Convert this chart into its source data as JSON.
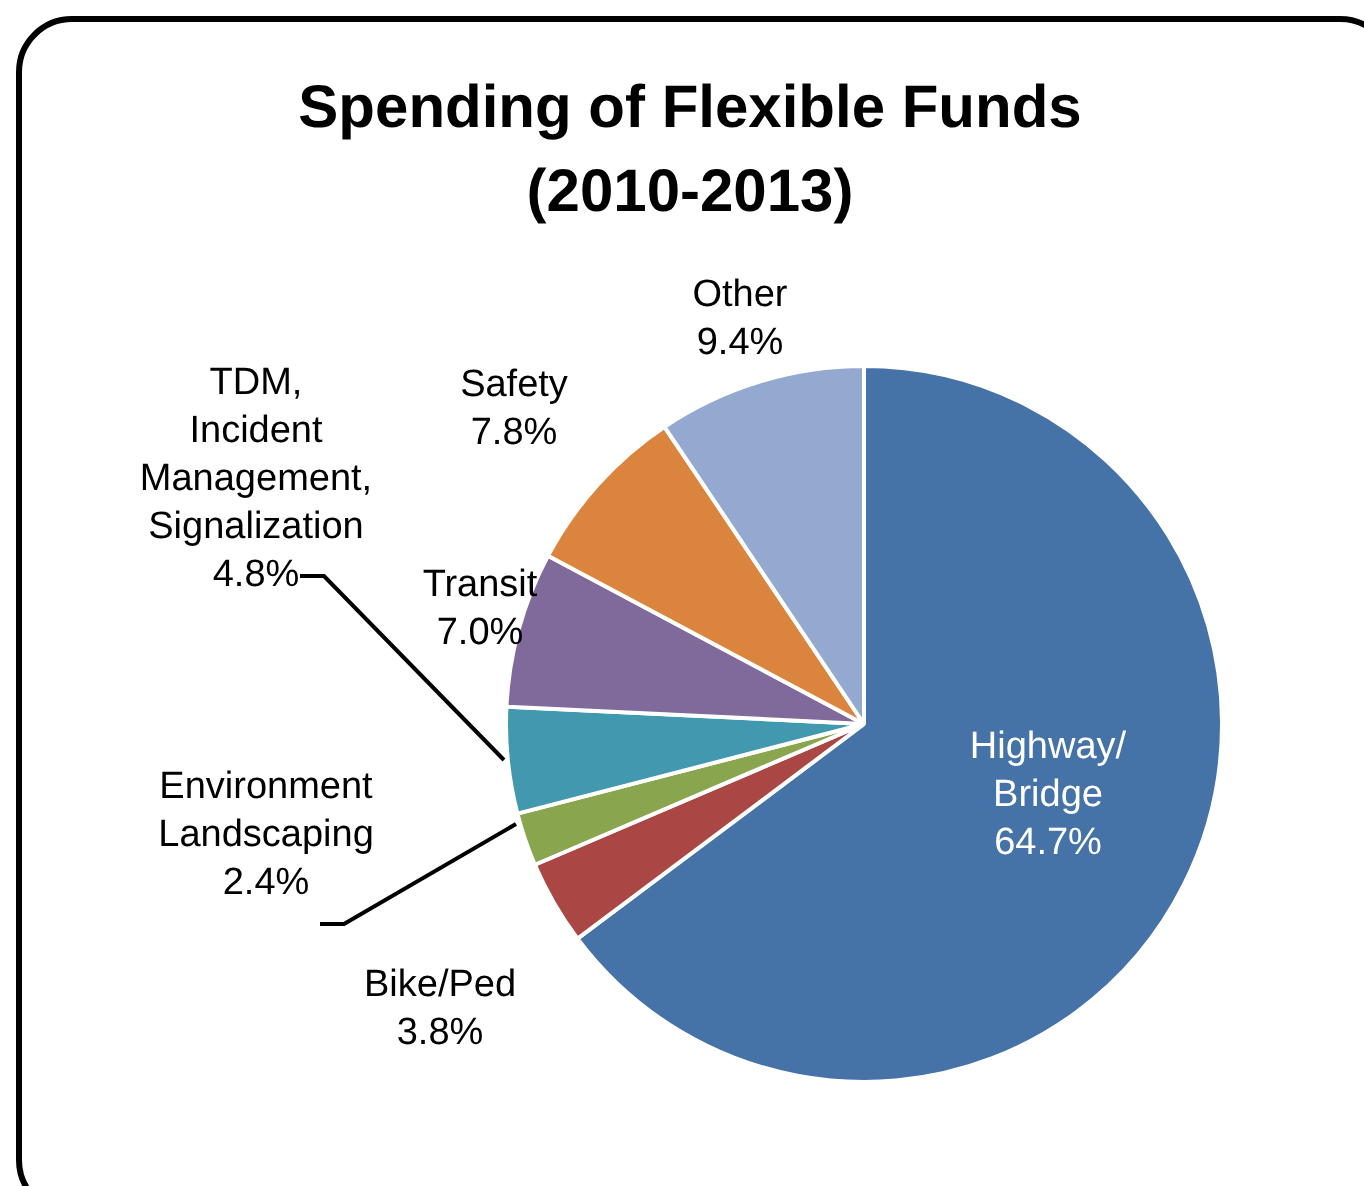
{
  "chart_data": {
    "type": "pie",
    "title": "Spending of Flexible Funds\n(2010-2013)",
    "categories": [
      "Highway/\nBridge",
      "Bike/Ped",
      "Environment\nLandscaping",
      "TDM,\nIncident\nManagement,\nSignalization",
      "Transit",
      "Safety",
      "Other"
    ],
    "values": [
      64.7,
      3.8,
      2.4,
      4.8,
      7.0,
      7.8,
      9.4
    ],
    "colors": [
      "#4572a7",
      "#aa4643",
      "#89a54e",
      "#4198af",
      "#80699b",
      "#db843d",
      "#93a9cf"
    ],
    "value_labels": [
      "64.7%",
      "3.8%",
      "2.4%",
      "4.8%",
      "7.0%",
      "7.8%",
      "9.4%"
    ],
    "legend": false
  }
}
